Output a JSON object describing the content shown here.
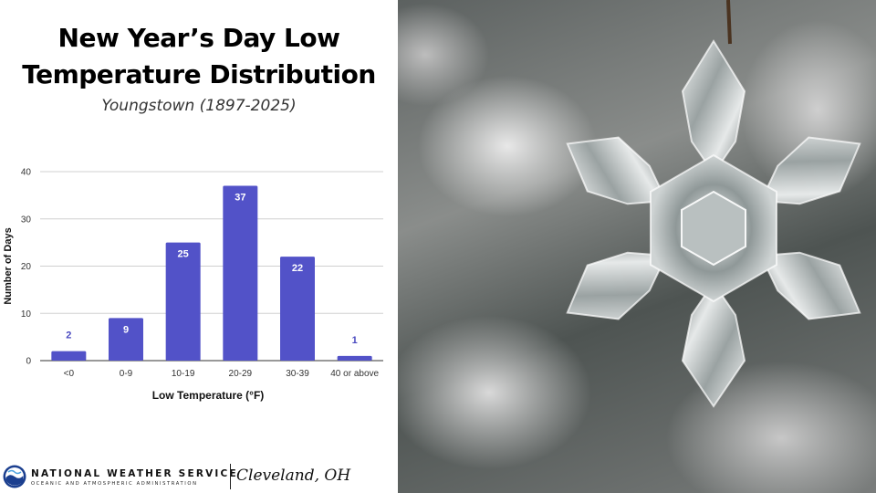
{
  "header": {
    "title_line1": "New Year’s Day Low",
    "title_line2": "Temperature Distribution",
    "subtitle": "Youngstown (1897-2025)"
  },
  "chart_data": {
    "type": "bar",
    "categories": [
      "<0",
      "0-9",
      "10-19",
      "20-29",
      "30-39",
      "40 or above"
    ],
    "values": [
      2,
      9,
      25,
      37,
      22,
      1
    ],
    "xlabel": "Low Temperature (°F)",
    "ylabel": "Number of Days",
    "ylim": [
      0,
      40
    ],
    "yticks": [
      0,
      10,
      20,
      30,
      40
    ],
    "grid": true,
    "legend": "none",
    "bar_color": "#5252c8",
    "data_labels_inside_color": "#ffffff",
    "data_labels_outside_color": "#4a4ac0"
  },
  "footer": {
    "org_name": "NATIONAL WEATHER SERVICE",
    "org_subtitle": "OCEANIC AND ATMOSPHERIC ADMINISTRATION",
    "office": "Cleveland, OH"
  },
  "photo": {
    "subject": "crystal-snowflake-ornament"
  }
}
